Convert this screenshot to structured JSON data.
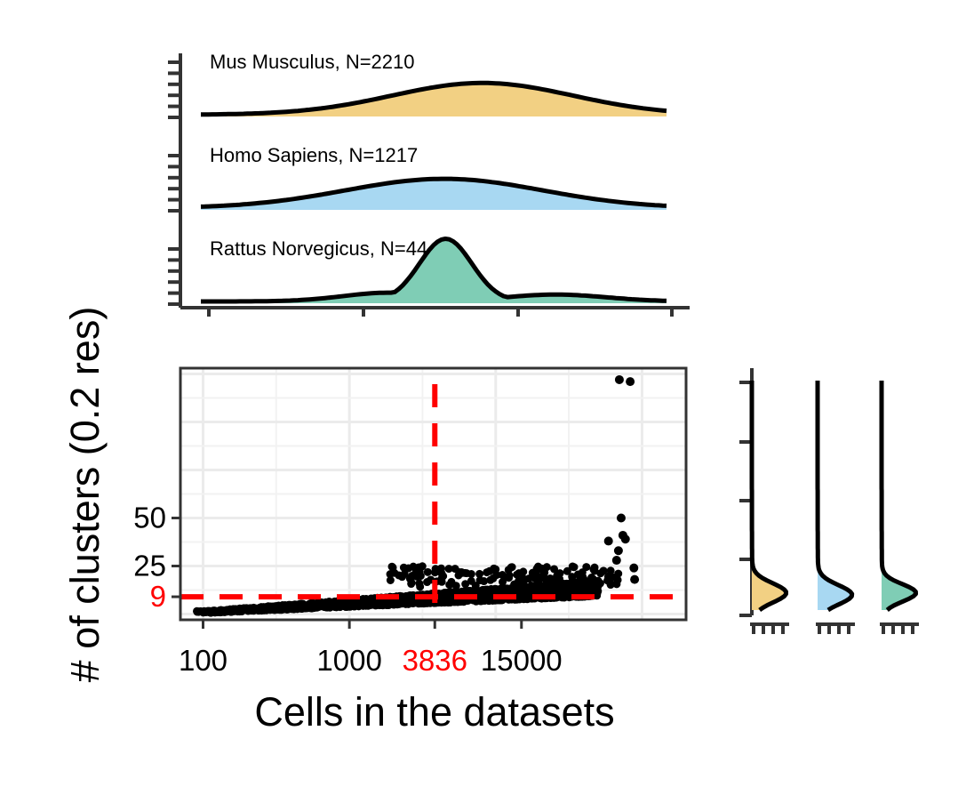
{
  "chart_data": [
    {
      "type": "area",
      "panel": "top-density",
      "xscale": "log",
      "series": [
        {
          "label": "Mus Musculus, N=2210",
          "color": "#F2D083",
          "mode_x": 7000,
          "sd_log10": 0.62,
          "peak_rel": 0.38
        },
        {
          "label": "Homo Sapiens, N=1217",
          "color": "#A8D8F2",
          "mode_x": 3800,
          "sd_log10": 0.68,
          "peak_rel": 0.35
        },
        {
          "label": "Rattus Norvegicus, N=44",
          "color": "#7FCDB5",
          "mode_x": 3900,
          "sd_log10": 0.18,
          "peak_rel": 0.75
        }
      ]
    },
    {
      "type": "scatter",
      "panel": "main",
      "xlabel": "Cells in the datasets",
      "ylabel": "# of clusters (0.2 res)",
      "xscale": "log",
      "xlim": [
        70,
        200000
      ],
      "ylim": [
        -3,
        128
      ],
      "x_ticks": [
        {
          "value": 100,
          "label": "100",
          "color": "#000000"
        },
        {
          "value": 1000,
          "label": "1000",
          "color": "#000000"
        },
        {
          "value": 3836,
          "label": "3836",
          "color": "#FF0000"
        },
        {
          "value": 15000,
          "label": "15000",
          "color": "#000000"
        }
      ],
      "y_ticks": [
        {
          "value": 9,
          "label": "9",
          "color": "#FF0000"
        },
        {
          "value": 25,
          "label": "25",
          "color": "#000000"
        },
        {
          "value": 50,
          "label": "50",
          "color": "#000000"
        }
      ],
      "reference_lines": [
        {
          "axis": "x",
          "value": 3836,
          "color": "#FF0000",
          "style": "dashed"
        },
        {
          "axis": "y",
          "value": 9,
          "color": "#FF0000",
          "style": "dashed"
        }
      ],
      "grid": true,
      "point_color": "#000000",
      "outliers": [
        {
          "x": 70000,
          "y": 122
        },
        {
          "x": 83000,
          "y": 121
        },
        {
          "x": 72000,
          "y": 50
        },
        {
          "x": 74000,
          "y": 41
        },
        {
          "x": 59000,
          "y": 38
        },
        {
          "x": 77000,
          "y": 39
        },
        {
          "x": 69000,
          "y": 33
        },
        {
          "x": 67000,
          "y": 28
        },
        {
          "x": 88000,
          "y": 24
        },
        {
          "x": 89000,
          "y": 18
        }
      ]
    },
    {
      "type": "area",
      "panel": "right-density",
      "orientation": "horizontal",
      "series": [
        {
          "color": "#F2D083",
          "mode_y": 9,
          "sd": 5
        },
        {
          "color": "#A8D8F2",
          "mode_y": 8,
          "sd": 5
        },
        {
          "color": "#7FCDB5",
          "mode_y": 9,
          "sd": 4.5
        }
      ]
    }
  ]
}
